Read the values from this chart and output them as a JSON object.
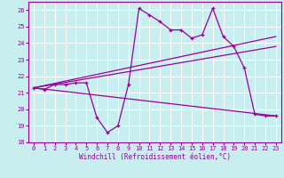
{
  "bg_color": "#c8eef0",
  "grid_color": "#ffffff",
  "line_color": "#990099",
  "xlabel": "Windchill (Refroidissement éolien,°C)",
  "ylim": [
    18,
    26.5
  ],
  "xlim": [
    -0.5,
    23.5
  ],
  "yticks": [
    18,
    19,
    20,
    21,
    22,
    23,
    24,
    25,
    26
  ],
  "xticks": [
    0,
    1,
    2,
    3,
    4,
    5,
    6,
    7,
    8,
    9,
    10,
    11,
    12,
    13,
    14,
    15,
    16,
    17,
    18,
    19,
    20,
    21,
    22,
    23
  ],
  "series1_x": [
    0,
    1,
    2,
    3,
    4,
    5,
    6,
    7,
    8,
    9,
    10,
    11,
    12,
    13,
    14,
    15,
    16,
    17,
    18,
    19,
    20,
    21,
    22,
    23
  ],
  "series1_y": [
    21.3,
    21.2,
    21.5,
    21.5,
    21.6,
    21.6,
    19.5,
    18.6,
    19.0,
    21.5,
    26.1,
    25.7,
    25.3,
    24.8,
    24.8,
    24.3,
    24.5,
    26.1,
    24.4,
    23.8,
    22.5,
    19.7,
    19.6,
    19.6
  ],
  "series2_x": [
    0,
    23
  ],
  "series2_y": [
    21.3,
    24.4
  ],
  "series3_x": [
    0,
    23
  ],
  "series3_y": [
    21.3,
    23.8
  ],
  "series4_x": [
    0,
    23
  ],
  "series4_y": [
    21.3,
    19.6
  ]
}
